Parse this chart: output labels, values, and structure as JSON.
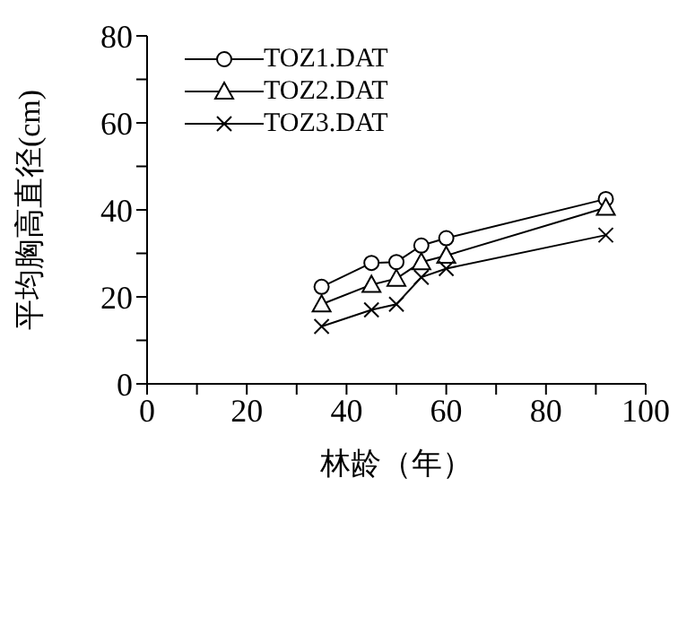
{
  "chart_data": {
    "type": "line",
    "xlabel": "林龄（年）",
    "ylabel": "平均胸高直径(cm)",
    "x": [
      35,
      45,
      50,
      55,
      60,
      92
    ],
    "series": [
      {
        "name": "TOZ1.DAT",
        "color": "#000000",
        "marker": "circle",
        "values": [
          22.3,
          27.8,
          28,
          31.8,
          33.5,
          42.5
        ]
      },
      {
        "name": "TOZ2.DAT",
        "color": "#000000",
        "marker": "triangle",
        "values": [
          18.3,
          22.8,
          24.2,
          28,
          29.5,
          40.5
        ]
      },
      {
        "name": "TOZ3.DAT",
        "color": "#000000",
        "marker": "cross",
        "values": [
          13.2,
          17,
          18.3,
          24.5,
          26.5,
          34.2
        ]
      }
    ],
    "xlim": [
      0,
      100
    ],
    "xticks": [
      0,
      {
        "value": 10,
        "label": null
      },
      20,
      {
        "value": 30,
        "label": null
      },
      40,
      {
        "value": 50,
        "label": null
      },
      60,
      {
        "value": 70,
        "label": null
      },
      80,
      {
        "value": 90,
        "label": null
      },
      100
    ],
    "ylim": [
      0,
      80
    ],
    "yticks": [
      0,
      {
        "value": 10,
        "label": null
      },
      20,
      {
        "value": 30,
        "label": null
      },
      40,
      {
        "value": 50,
        "label": null
      },
      60,
      {
        "value": 70,
        "label": null
      },
      80
    ],
    "grid": false,
    "legend": "top left",
    "line_style": "solid"
  }
}
